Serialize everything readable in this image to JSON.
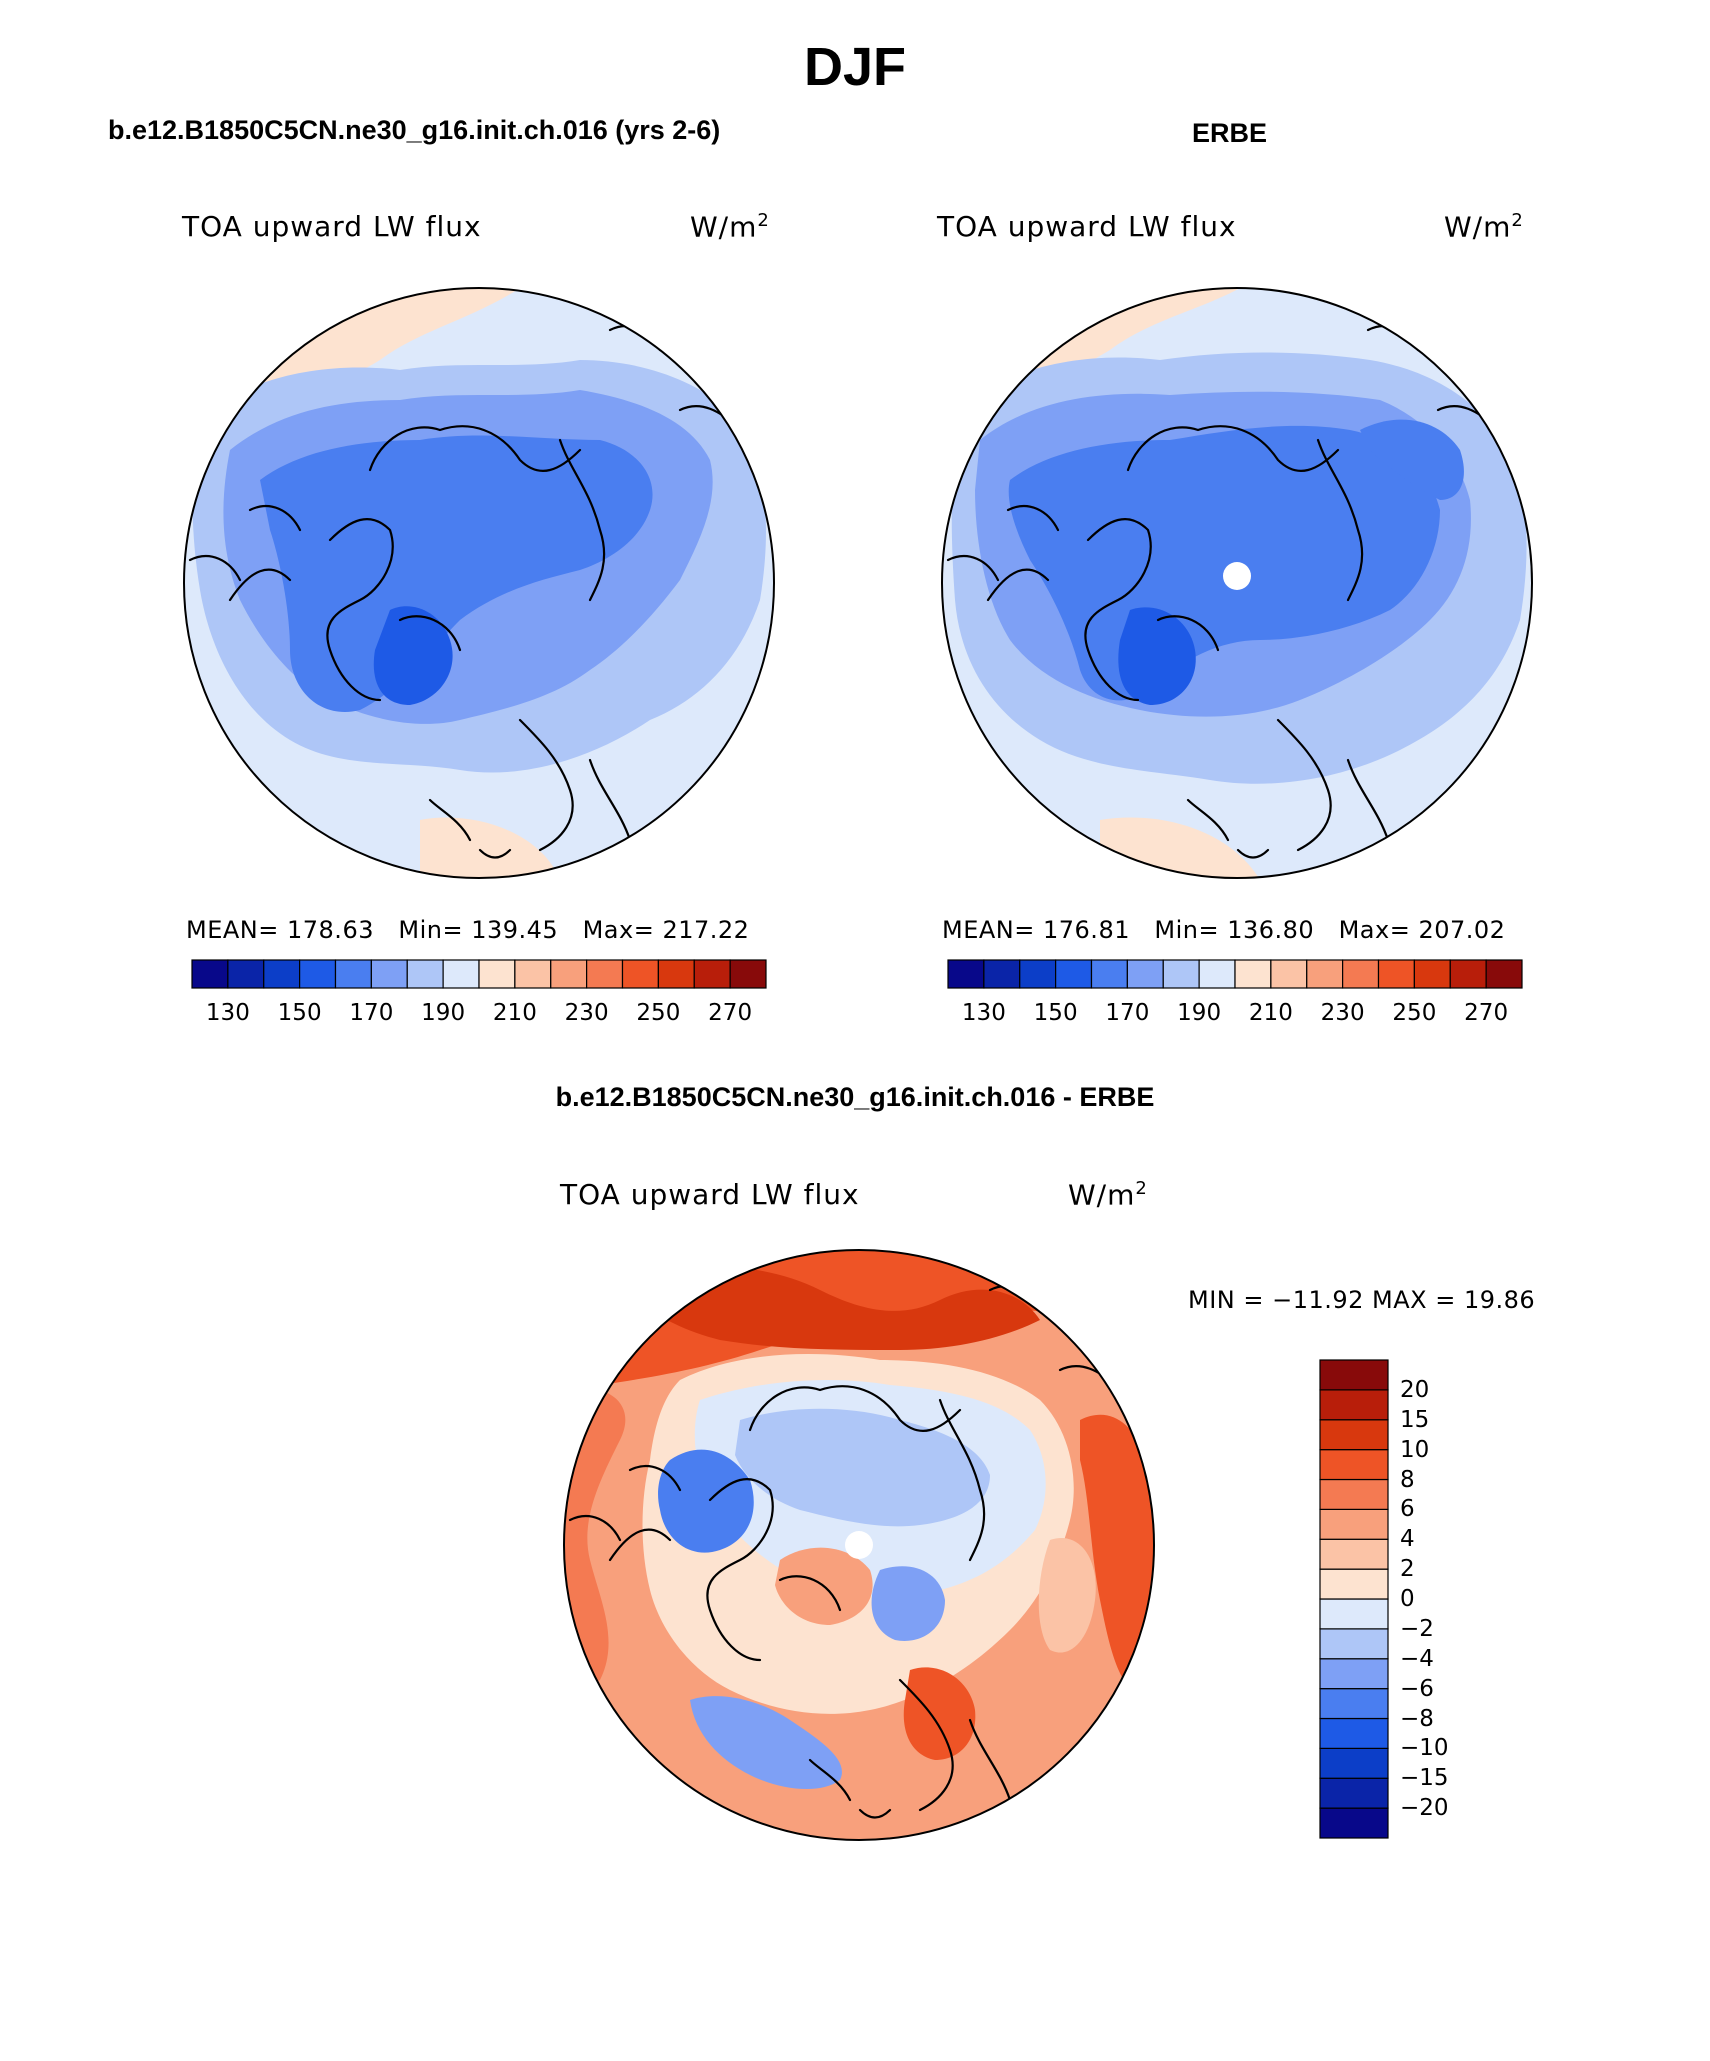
{
  "figure": {
    "title": "DJF"
  },
  "panels": [
    {
      "heading": "b.e12.B1850C5CN.ne30_g16.init.ch.016 (yrs 2-6)",
      "variable": "TOA upward LW flux",
      "units": "W/m",
      "units_sup": "2",
      "stats": {
        "mean_label": "MEAN=",
        "mean": "178.63",
        "min_label": "Min=",
        "min": "139.45",
        "max_label": "Max=",
        "max": "217.22"
      }
    },
    {
      "heading": "ERBE",
      "variable": "TOA upward LW flux",
      "units": "W/m",
      "units_sup": "2",
      "stats": {
        "mean_label": "MEAN=",
        "mean": "176.81",
        "min_label": "Min=",
        "min": "136.80",
        "max_label": "Max=",
        "max": "207.02"
      }
    },
    {
      "heading": "b.e12.B1850C5CN.ne30_g16.init.ch.016 - ERBE",
      "variable": "TOA upward LW flux",
      "units": "W/m",
      "units_sup": "2",
      "minmax_text": "MIN = −11.92 MAX =   19.86"
    }
  ],
  "colorbar_abs": {
    "colors": [
      "#08088a",
      "#0a24a8",
      "#0c3ec8",
      "#1e5ae6",
      "#4a7ef0",
      "#7ea0f5",
      "#aec6f7",
      "#dde9fb",
      "#fde3d0",
      "#fbc3a6",
      "#f8a07c",
      "#f47a52",
      "#ee5426",
      "#d8380e",
      "#b81e0a",
      "#880a0a"
    ],
    "tick_labels": [
      "130",
      "150",
      "170",
      "190",
      "210",
      "230",
      "250",
      "270"
    ]
  },
  "colorbar_diff": {
    "colors": [
      "#08088a",
      "#0a24a8",
      "#0c3ec8",
      "#1e5ae6",
      "#4a7ef0",
      "#7ea0f5",
      "#aec6f7",
      "#dde9fb",
      "#fde3d0",
      "#fbc3a6",
      "#f8a07c",
      "#f47a52",
      "#ee5426",
      "#d8380e",
      "#b81e0a",
      "#880a0a"
    ],
    "tick_labels": [
      "−20",
      "−15",
      "−10",
      "−8",
      "−6",
      "−4",
      "−2",
      "0",
      "2",
      "4",
      "6",
      "8",
      "10",
      "15",
      "20"
    ]
  },
  "map_colors": {
    "c1": "#aec6f7",
    "c2": "#7ea0f5",
    "c3": "#4a7ef0",
    "c4": "#1e5ae6",
    "c5": "#dde9fb",
    "c6": "#fde3d0",
    "w1": "#fde3d0",
    "w2": "#fbc3a6",
    "w3": "#f8a07c",
    "w4": "#f47a52",
    "w5": "#ee5426",
    "w6": "#d8380e"
  }
}
